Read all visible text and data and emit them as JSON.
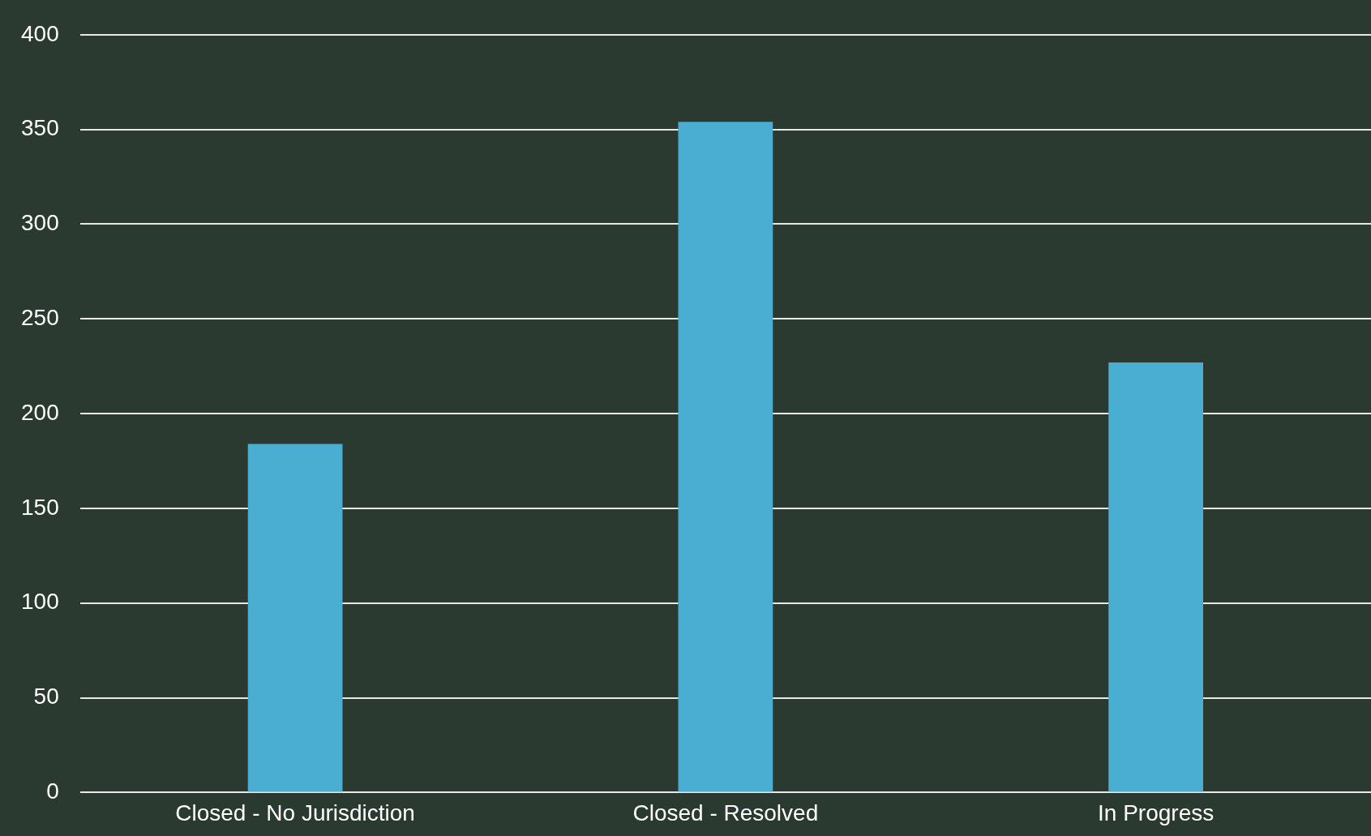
{
  "chart_data": {
    "type": "bar",
    "categories": [
      "Closed - No Jurisdiction",
      "Closed - Resolved",
      "In Progress"
    ],
    "values": [
      184,
      354,
      227
    ],
    "color": "#4aaed2",
    "ylim": [
      0,
      400
    ],
    "yticks": [
      0,
      50,
      100,
      150,
      200,
      250,
      300,
      350,
      400
    ],
    "grid": "y",
    "legend": false
  }
}
